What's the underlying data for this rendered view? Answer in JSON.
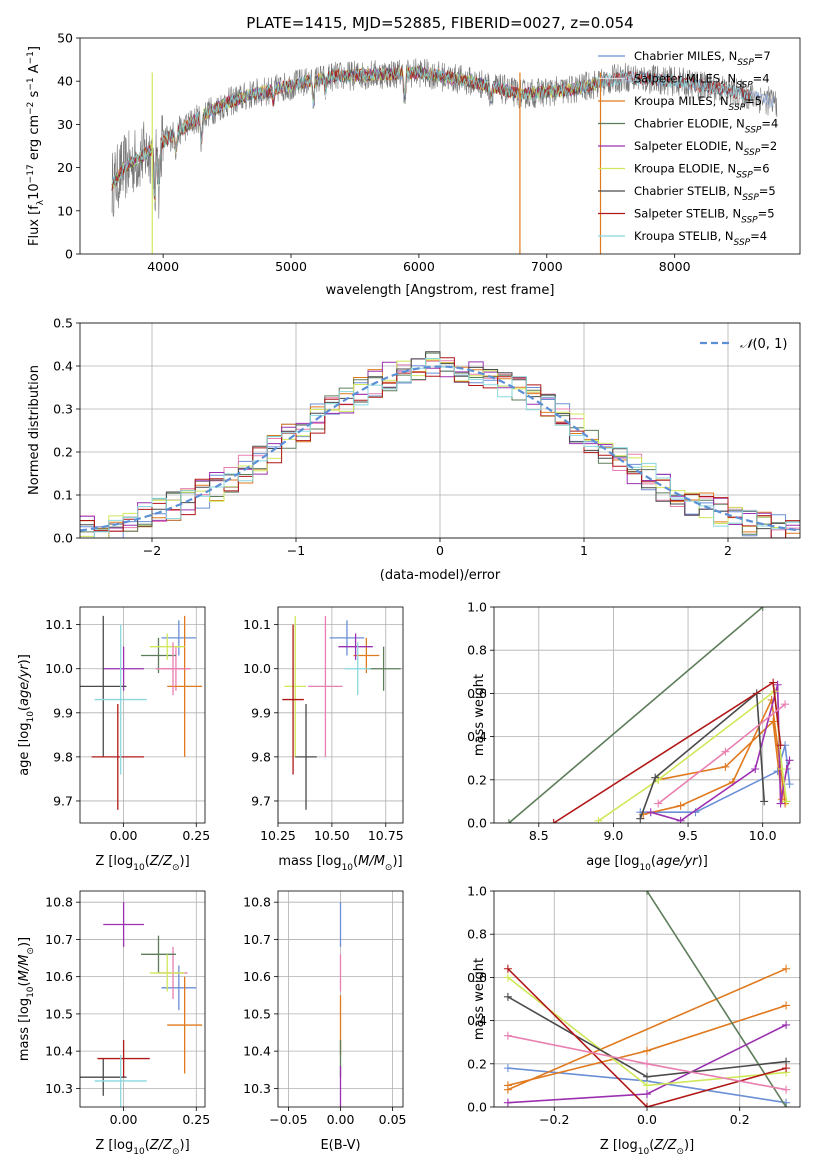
{
  "figure": {
    "title": "PLATE=1415, MJD=52885, FIBERID=0027, z=0.054"
  },
  "colors": {
    "series": [
      "#6b8fd6",
      "#d9d9d9",
      "#e07a1f",
      "#5d7d5a",
      "#9b30b0",
      "#cfe85a",
      "#4a4a4a",
      "#b01818",
      "#8ad8dd"
    ],
    "extra": "#e87fb0",
    "normal_curve": "#5b8fd6"
  },
  "chart_data": [
    {
      "id": "spectrum",
      "type": "line",
      "title": "PLATE=1415, MJD=52885, FIBERID=0027, z=0.054",
      "xlabel": "wavelength [Angstrom, rest frame]",
      "ylabel": "Flux [f_λ 10^-17 erg cm^-2 s^-1 A^-1]",
      "xlim": [
        3350,
        8980
      ],
      "ylim": [
        0,
        50
      ],
      "xticks": [
        4000,
        5000,
        6000,
        7000,
        8000
      ],
      "yticks": [
        0,
        10,
        20,
        30,
        40,
        50
      ],
      "grid": false,
      "legend_position": "top-right",
      "continuum_x": [
        3600,
        3700,
        3800,
        3900,
        4000,
        4100,
        4200,
        4300,
        4500,
        4700,
        5000,
        5300,
        5600,
        6000,
        6400,
        6800,
        7200,
        7600,
        8000,
        8400,
        8800
      ],
      "continuum_y": [
        16,
        20,
        22,
        24,
        26,
        28,
        30,
        32,
        35,
        37,
        39,
        41,
        41.5,
        42,
        40,
        37,
        38,
        41,
        40,
        38,
        35
      ],
      "series": [
        {
          "name": "Chabrier MILES, N_SSP=7",
          "legend_text": "Chabrier MILES, N",
          "legend_sub": "SSP",
          "legend_tail": "=7"
        },
        {
          "name": "Salpeter MILES, N_SSP=4",
          "legend_text": "Salpeter MILES, N",
          "legend_sub": "SSP",
          "legend_tail": "=4"
        },
        {
          "name": "Kroupa MILES, N_SSP=5",
          "legend_text": "Kroupa MILES, N",
          "legend_sub": "SSP",
          "legend_tail": "=5"
        },
        {
          "name": "Chabrier ELODIE, N_SSP=4",
          "legend_text": "Chabrier ELODIE, N",
          "legend_sub": "SSP",
          "legend_tail": "=4"
        },
        {
          "name": "Salpeter ELODIE, N_SSP=2",
          "legend_text": "Salpeter ELODIE, N",
          "legend_sub": "SSP",
          "legend_tail": "=2"
        },
        {
          "name": "Kroupa ELODIE, N_SSP=6",
          "legend_text": "Kroupa ELODIE, N",
          "legend_sub": "SSP",
          "legend_tail": "=6"
        },
        {
          "name": "Chabrier STELIB, N_SSP=5",
          "legend_text": "Chabrier STELIB, N",
          "legend_sub": "SSP",
          "legend_tail": "=5"
        },
        {
          "name": "Salpeter STELIB, N_SSP=5",
          "legend_text": "Salpeter STELIB, N",
          "legend_sub": "SSP",
          "legend_tail": "=5"
        },
        {
          "name": "Kroupa STELIB, N_SSP=4",
          "legend_text": "Kroupa STELIB, N",
          "legend_sub": "SSP",
          "legend_tail": "=4"
        }
      ]
    },
    {
      "id": "residuals",
      "type": "line",
      "xlabel": "(data-model)/error",
      "ylabel": "Normed distribution",
      "xlim": [
        -2.5,
        2.5
      ],
      "ylim": [
        0,
        0.5
      ],
      "xticks": [
        -2,
        -1,
        0,
        1,
        2
      ],
      "yticks": [
        0.0,
        0.1,
        0.2,
        0.3,
        0.4,
        0.5
      ],
      "grid": true,
      "legend_position": "top-right",
      "legend": "N(0,1)",
      "bin_width": 0.1
    },
    {
      "id": "age_vs_Z",
      "type": "scatter",
      "xlabel": "Z [log10(Z/Z_sun)]",
      "ylabel": "age [log10(age/yr)]",
      "xlim": [
        -0.15,
        0.28
      ],
      "ylim": [
        9.65,
        10.14
      ],
      "xticks": [
        0.0,
        0.25
      ],
      "yticks": [
        9.7,
        9.8,
        9.9,
        10.0,
        10.1
      ],
      "grid": true,
      "points": [
        {
          "x": 0.19,
          "y": 10.07,
          "xerr": 0.06,
          "yerr": 0.04
        },
        {
          "x": 0.18,
          "y": 10.0,
          "xerr": 0.05,
          "yerr": 0.05
        },
        {
          "x": 0.21,
          "y": 9.96,
          "xerr": 0.06,
          "yerr": 0.16
        },
        {
          "x": 0.12,
          "y": 10.03,
          "xerr": 0.06,
          "yerr": 0.04
        },
        {
          "x": 0.0,
          "y": 10.0,
          "xerr": 0.07,
          "yerr": 0.05
        },
        {
          "x": 0.15,
          "y": 10.05,
          "xerr": 0.06,
          "yerr": 0.03
        },
        {
          "x": -0.07,
          "y": 9.96,
          "xerr": 0.08,
          "yerr": 0.16
        },
        {
          "x": -0.02,
          "y": 9.8,
          "xerr": 0.09,
          "yerr": 0.12
        },
        {
          "x": -0.01,
          "y": 9.93,
          "xerr": 0.09,
          "yerr": 0.17
        },
        {
          "x": 0.17,
          "y": 10.0,
          "xerr": 0.06,
          "yerr": 0.06
        }
      ]
    },
    {
      "id": "age_vs_mass",
      "type": "scatter",
      "xlabel": "mass [log10(M/M_sun)]",
      "ylabel": "",
      "xlim": [
        10.25,
        10.83
      ],
      "ylim": [
        9.65,
        10.14
      ],
      "xticks": [
        10.25,
        10.5,
        10.75
      ],
      "yticks": [
        9.7,
        9.8,
        9.9,
        10.0,
        10.1
      ],
      "grid": true,
      "points": [
        {
          "x": 10.57,
          "y": 10.07,
          "xerr": 0.08,
          "yerr": 0.04
        },
        {
          "x": 10.47,
          "y": 9.96,
          "xerr": 0.08,
          "yerr": 0.16
        },
        {
          "x": 10.66,
          "y": 10.03,
          "xerr": 0.06,
          "yerr": 0.04
        },
        {
          "x": 10.74,
          "y": 10.0,
          "xerr": 0.08,
          "yerr": 0.05
        },
        {
          "x": 10.61,
          "y": 10.05,
          "xerr": 0.08,
          "yerr": 0.03
        },
        {
          "x": 10.33,
          "y": 9.96,
          "xerr": 0.05,
          "yerr": 0.16
        },
        {
          "x": 10.38,
          "y": 9.8,
          "xerr": 0.05,
          "yerr": 0.12
        },
        {
          "x": 10.32,
          "y": 9.93,
          "xerr": 0.05,
          "yerr": 0.17
        },
        {
          "x": 10.62,
          "y": 10.0,
          "xerr": 0.06,
          "yerr": 0.06
        }
      ]
    },
    {
      "id": "weight_vs_age",
      "type": "line",
      "xlabel": "age [log10(age/yr)]",
      "ylabel": "mass weight",
      "xlim": [
        8.2,
        10.25
      ],
      "ylim": [
        0,
        1.0
      ],
      "xticks": [
        8.5,
        9.0,
        9.5,
        10.0
      ],
      "yticks": [
        0.0,
        0.2,
        0.4,
        0.6,
        0.8,
        1.0
      ],
      "grid": true,
      "series": [
        {
          "x": [
            9.18,
            9.55,
            10.1,
            10.15,
            10.18
          ],
          "y": [
            0.05,
            0.05,
            0.24,
            0.36,
            0.18
          ]
        },
        {
          "x": [
            9.2,
            9.45,
            9.8,
            10.06,
            10.15
          ],
          "y": [
            0.04,
            0.08,
            0.19,
            0.57,
            0.09
          ]
        },
        {
          "x": [
            9.3,
            9.75,
            10.07,
            10.13
          ],
          "y": [
            0.2,
            0.26,
            0.47,
            0.11
          ]
        },
        {
          "x": [
            8.3,
            10.0
          ],
          "y": [
            0.0,
            1.0
          ]
        },
        {
          "x": [
            9.25,
            9.45,
            9.95,
            10.1,
            10.12,
            10.16,
            10.18
          ],
          "y": [
            0.05,
            0.01,
            0.25,
            0.64,
            0.09,
            0.25,
            0.29
          ]
        },
        {
          "x": [
            8.9,
            9.3,
            10.08,
            10.13,
            10.16
          ],
          "y": [
            0.01,
            0.2,
            0.61,
            0.25,
            0.1
          ]
        },
        {
          "x": [
            9.18,
            9.28,
            9.96,
            10.01
          ],
          "y": [
            0.02,
            0.21,
            0.6,
            0.1
          ]
        },
        {
          "x": [
            8.6,
            10.07,
            10.12
          ],
          "y": [
            0.0,
            0.65,
            0.36
          ]
        },
        {
          "x": [
            9.3,
            9.75,
            10.15
          ],
          "y": [
            0.09,
            0.33,
            0.55
          ]
        }
      ]
    },
    {
      "id": "mass_vs_Z",
      "type": "scatter",
      "xlabel": "Z [log10(Z/Z_sun)]",
      "ylabel": "mass [log10(M/M_sun)]",
      "xlim": [
        -0.15,
        0.28
      ],
      "ylim": [
        10.25,
        10.83
      ],
      "xticks": [
        0.0,
        0.25
      ],
      "yticks": [
        10.3,
        10.4,
        10.5,
        10.6,
        10.7,
        10.8
      ],
      "grid": true,
      "points": [
        {
          "x": 0.19,
          "y": 10.57,
          "xerr": 0.06,
          "yerr": 0.06
        },
        {
          "x": 0.17,
          "y": 10.61,
          "xerr": 0.05,
          "yerr": 0.07
        },
        {
          "x": 0.21,
          "y": 10.47,
          "xerr": 0.06,
          "yerr": 0.13
        },
        {
          "x": 0.12,
          "y": 10.66,
          "xerr": 0.06,
          "yerr": 0.05
        },
        {
          "x": 0.0,
          "y": 10.74,
          "xerr": 0.07,
          "yerr": 0.06
        },
        {
          "x": 0.15,
          "y": 10.61,
          "xerr": 0.06,
          "yerr": 0.05
        },
        {
          "x": -0.07,
          "y": 10.33,
          "xerr": 0.08,
          "yerr": 0.05
        },
        {
          "x": 0.0,
          "y": 10.38,
          "xerr": 0.09,
          "yerr": 0.05
        },
        {
          "x": -0.01,
          "y": 10.32,
          "xerr": 0.09,
          "yerr": 0.07
        }
      ]
    },
    {
      "id": "mass_vs_EBV",
      "type": "scatter",
      "xlabel": "E(B-V)",
      "ylabel": "",
      "xlim": [
        -0.06,
        0.06
      ],
      "ylim": [
        10.25,
        10.83
      ],
      "xticks": [
        -0.05,
        0.0,
        0.05
      ],
      "yticks": [
        10.3,
        10.4,
        10.5,
        10.6,
        10.7,
        10.8
      ],
      "grid": true,
      "points": [
        {
          "x": 0.0,
          "y": 10.74,
          "xerr": 0,
          "yerr": 0.06
        },
        {
          "x": 0.0,
          "y": 10.61,
          "xerr": 0,
          "yerr": 0.05
        },
        {
          "x": 0.0,
          "y": 10.47,
          "xerr": 0,
          "yerr": 0.08
        },
        {
          "x": 0.0,
          "y": 10.38,
          "xerr": 0,
          "yerr": 0.05
        },
        {
          "x": 0.0,
          "y": 10.3,
          "xerr": 0,
          "yerr": 0.06
        }
      ]
    },
    {
      "id": "weight_vs_Z",
      "type": "line",
      "xlabel": "Z [log10(Z/Z_sun)]",
      "ylabel": "mass weight",
      "xlim": [
        -0.33,
        0.33
      ],
      "ylim": [
        0,
        1.0
      ],
      "xticks": [
        -0.2,
        0.0,
        0.2
      ],
      "yticks": [
        0.0,
        0.2,
        0.4,
        0.6,
        0.8,
        1.0
      ],
      "grid": true,
      "series": [
        {
          "x": [
            -0.3,
            0.0,
            0.3
          ],
          "y": [
            0.18,
            0.12,
            0.02
          ]
        },
        {
          "x": [
            -0.3,
            0.3
          ],
          "y": [
            0.08,
            0.64
          ]
        },
        {
          "x": [
            -0.3,
            0.0,
            0.3
          ],
          "y": [
            0.1,
            0.26,
            0.47
          ]
        },
        {
          "x": [
            0.0,
            0.3
          ],
          "y": [
            1.0,
            0.0
          ]
        },
        {
          "x": [
            -0.3,
            0.0,
            0.3
          ],
          "y": [
            0.02,
            0.06,
            0.38
          ]
        },
        {
          "x": [
            -0.3,
            0.0,
            0.3
          ],
          "y": [
            0.6,
            0.1,
            0.16
          ]
        },
        {
          "x": [
            -0.3,
            0.0,
            0.3
          ],
          "y": [
            0.51,
            0.14,
            0.21
          ]
        },
        {
          "x": [
            -0.3,
            0.0,
            0.3
          ],
          "y": [
            0.64,
            0.0,
            0.18
          ]
        },
        {
          "x": [
            -0.3,
            0.0,
            0.3
          ],
          "y": [
            0.33,
            0.2,
            0.08
          ]
        }
      ]
    }
  ]
}
